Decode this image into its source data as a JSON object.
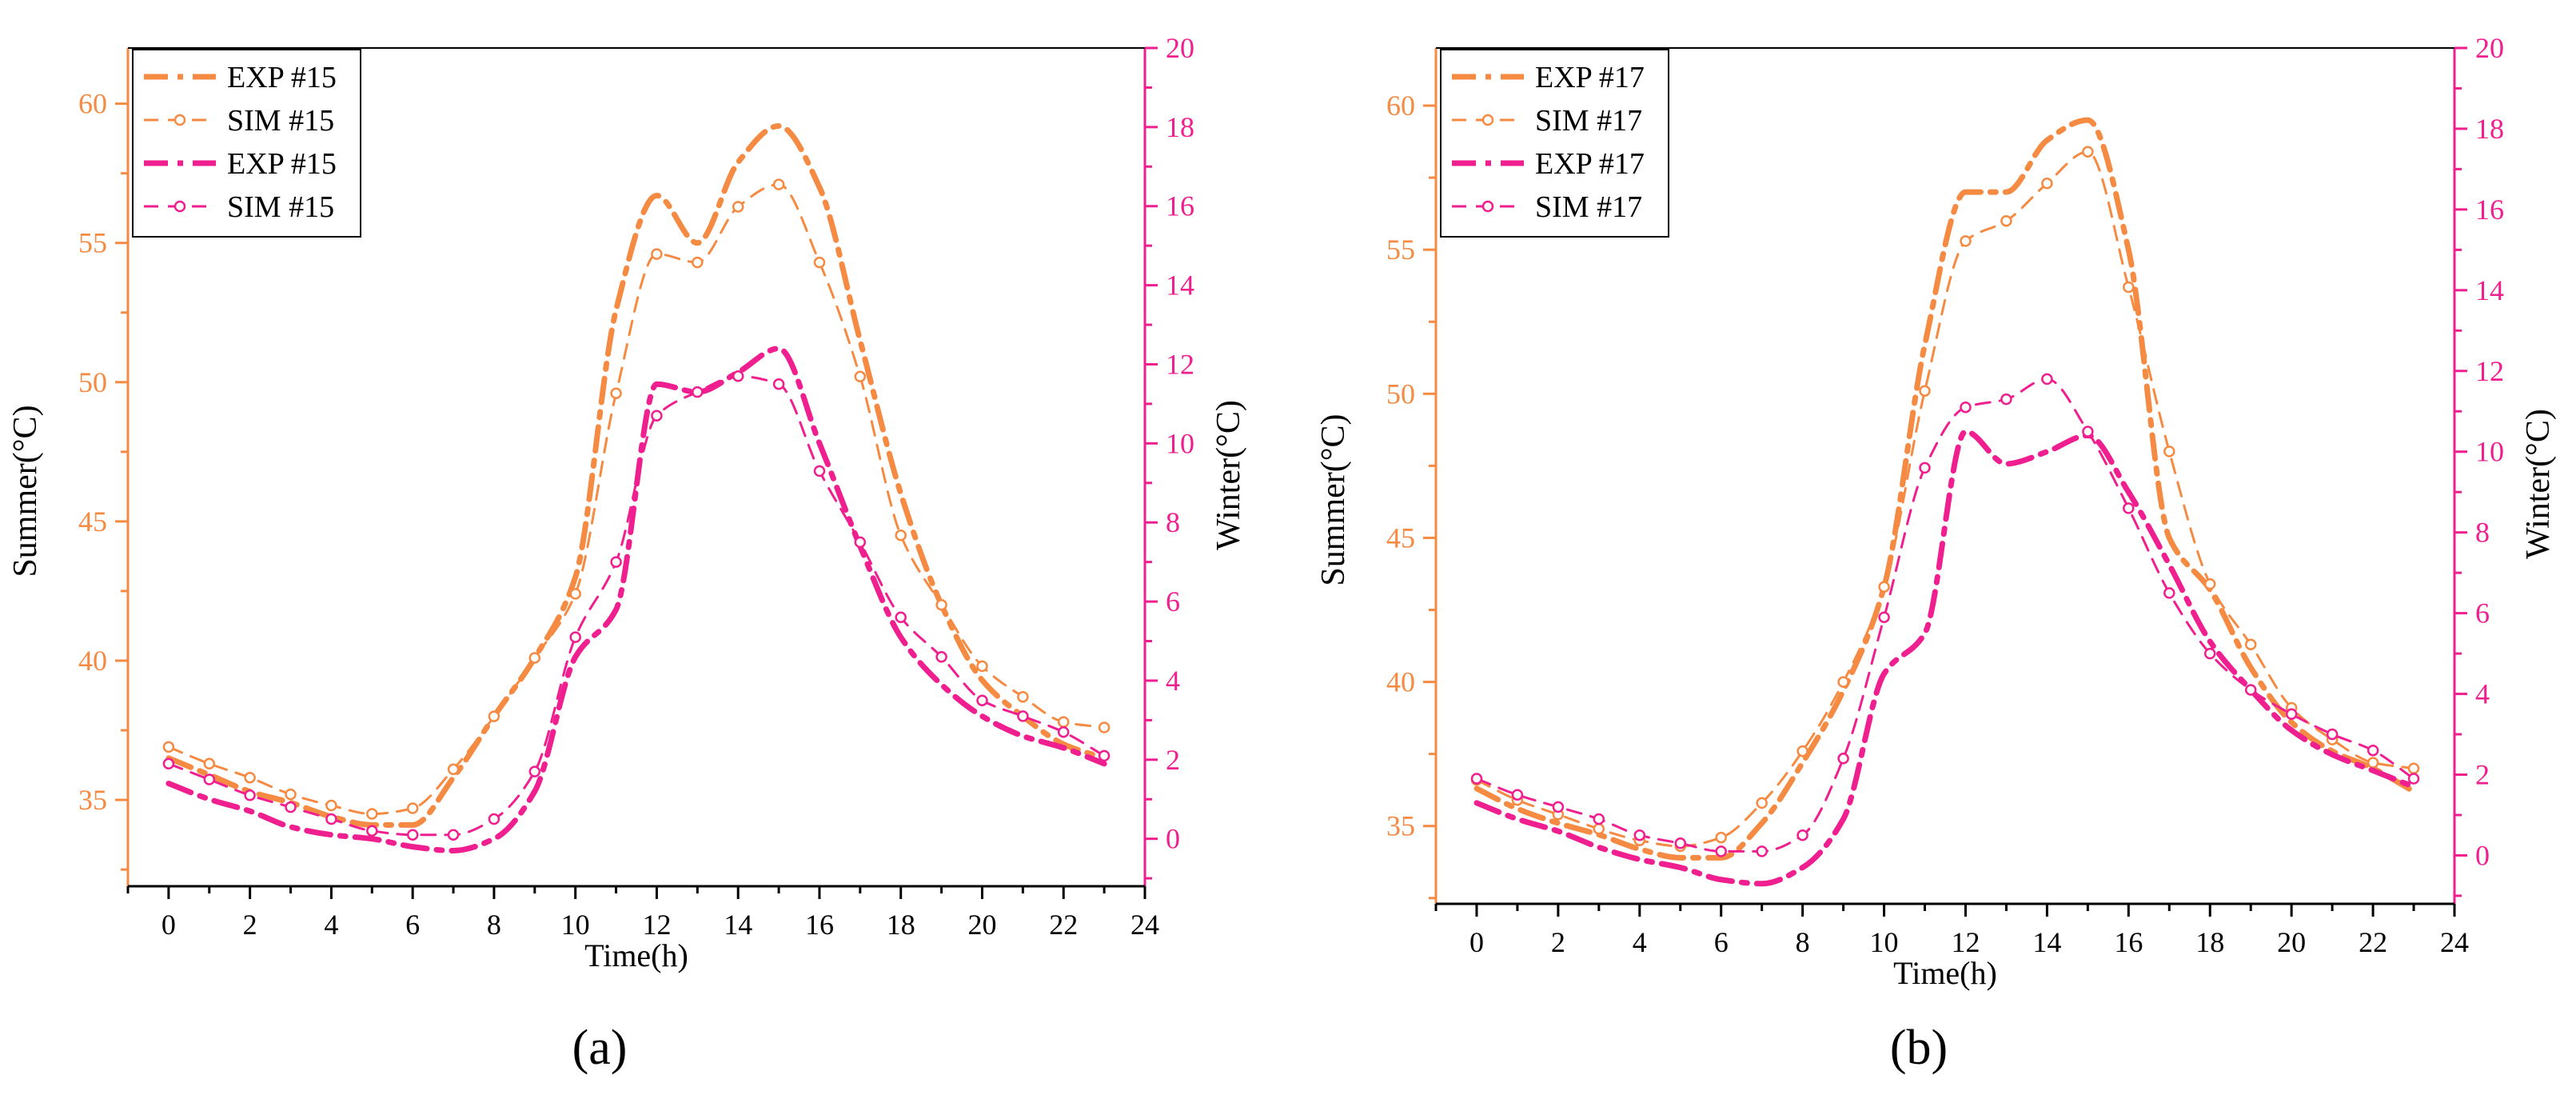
{
  "colors": {
    "summer": "#f58a42",
    "winter": "#ef1f8f",
    "axis": "#000000"
  },
  "chart_data": [
    {
      "type": "line",
      "panel_label": "(a)",
      "xlabel": "Time(h)",
      "ylabel_left": "Summer(°C)",
      "ylabel_right": "Winter(°C)",
      "xlim": [
        -1,
        24
      ],
      "ylim_left": [
        31.9,
        62
      ],
      "ylim_right": [
        -1.2,
        20
      ],
      "x_ticks": [
        0,
        2,
        4,
        6,
        8,
        10,
        12,
        14,
        16,
        18,
        20,
        22,
        24
      ],
      "y_left_ticks": [
        35,
        40,
        45,
        50,
        55,
        60
      ],
      "y_right_ticks": [
        0,
        2,
        4,
        6,
        8,
        10,
        12,
        14,
        16,
        18,
        20
      ],
      "legend": [
        "EXP #15",
        "SIM #15",
        "EXP #15",
        "SIM #15"
      ],
      "legend_position": "top-left",
      "x": [
        0,
        1,
        2,
        3,
        4,
        5,
        6,
        7,
        8,
        9,
        10,
        11,
        12,
        13,
        14,
        15,
        16,
        17,
        18,
        19,
        20,
        21,
        22,
        23
      ],
      "series": [
        {
          "name": "EXP #15",
          "axis": "left",
          "style": "dashdot",
          "markers": false,
          "values": [
            36.5,
            35.9,
            35.3,
            34.9,
            34.4,
            34.1,
            34.1,
            35.8,
            38.0,
            40.1,
            43.0,
            52.6,
            56.7,
            55.0,
            57.9,
            59.2,
            57.0,
            51.5,
            46.0,
            42.0,
            39.3,
            38.0,
            37.0,
            36.5
          ]
        },
        {
          "name": "SIM #15",
          "axis": "left",
          "style": "dash",
          "markers": true,
          "values": [
            36.9,
            36.3,
            35.8,
            35.2,
            34.8,
            34.5,
            34.7,
            36.1,
            38.0,
            40.1,
            42.4,
            49.6,
            54.6,
            54.3,
            56.3,
            57.1,
            54.3,
            50.2,
            44.5,
            42.0,
            39.8,
            38.7,
            37.8,
            37.6
          ]
        },
        {
          "name": "EXP #15",
          "axis": "right",
          "style": "dashdot",
          "markers": false,
          "values": [
            1.4,
            1.0,
            0.7,
            0.3,
            0.1,
            0.0,
            -0.2,
            -0.3,
            0.0,
            1.2,
            4.6,
            5.8,
            11.5,
            11.3,
            11.8,
            12.4,
            10.0,
            7.4,
            5.1,
            3.9,
            3.1,
            2.6,
            2.3,
            1.9
          ]
        },
        {
          "name": "SIM #15",
          "axis": "right",
          "style": "dash",
          "markers": true,
          "values": [
            1.9,
            1.5,
            1.1,
            0.8,
            0.5,
            0.2,
            0.1,
            0.1,
            0.5,
            1.7,
            5.1,
            7.0,
            10.7,
            11.3,
            11.7,
            11.5,
            9.3,
            7.5,
            5.6,
            4.6,
            3.5,
            3.1,
            2.7,
            2.1
          ]
        }
      ]
    },
    {
      "type": "line",
      "panel_label": "(b)",
      "xlabel": "Time(h)",
      "ylabel_left": "Summer(°C)",
      "ylabel_right": "Winter(°C)",
      "xlim": [
        -1,
        24
      ],
      "ylim_left": [
        32.3,
        62
      ],
      "ylim_right": [
        -1.2,
        20
      ],
      "x_ticks": [
        0,
        2,
        4,
        6,
        8,
        10,
        12,
        14,
        16,
        18,
        20,
        22,
        24
      ],
      "y_left_ticks": [
        35,
        40,
        45,
        50,
        55,
        60
      ],
      "y_right_ticks": [
        0,
        2,
        4,
        6,
        8,
        10,
        12,
        14,
        16,
        18,
        20
      ],
      "legend": [
        "EXP #17",
        "SIM #17",
        "EXP #17",
        "SIM #17"
      ],
      "legend_position": "top-left",
      "x": [
        0,
        1,
        2,
        3,
        4,
        5,
        6,
        7,
        8,
        9,
        10,
        11,
        12,
        13,
        14,
        15,
        16,
        17,
        18,
        19,
        20,
        21,
        22,
        23
      ],
      "series": [
        {
          "name": "EXP #17",
          "axis": "left",
          "style": "dashdot",
          "markers": false,
          "values": [
            36.3,
            35.6,
            35.1,
            34.7,
            34.2,
            33.9,
            33.9,
            35.1,
            37.2,
            39.7,
            43.3,
            51.7,
            57.0,
            57.0,
            58.8,
            59.5,
            55.0,
            45.0,
            43.2,
            40.5,
            38.6,
            37.6,
            37.0,
            36.2
          ]
        },
        {
          "name": "SIM #17",
          "axis": "left",
          "style": "dash",
          "markers": true,
          "values": [
            36.6,
            35.9,
            35.4,
            34.9,
            34.5,
            34.3,
            34.6,
            35.8,
            37.6,
            40.0,
            43.3,
            50.1,
            55.3,
            56.0,
            57.3,
            58.4,
            53.7,
            48.0,
            43.4,
            41.3,
            39.1,
            38.0,
            37.2,
            37.0
          ]
        },
        {
          "name": "EXP #17",
          "axis": "right",
          "style": "dashdot",
          "markers": false,
          "values": [
            1.3,
            0.9,
            0.6,
            0.2,
            -0.1,
            -0.3,
            -0.6,
            -0.7,
            -0.3,
            0.9,
            4.5,
            5.5,
            10.5,
            9.7,
            10.0,
            10.4,
            9.0,
            7.2,
            5.3,
            4.1,
            3.1,
            2.5,
            2.1,
            1.7
          ]
        },
        {
          "name": "SIM #17",
          "axis": "right",
          "style": "dash",
          "markers": true,
          "values": [
            1.9,
            1.5,
            1.2,
            0.9,
            0.5,
            0.3,
            0.1,
            0.1,
            0.5,
            2.4,
            5.9,
            9.6,
            11.1,
            11.3,
            11.8,
            10.5,
            8.6,
            6.5,
            5.0,
            4.1,
            3.5,
            3.0,
            2.6,
            1.9
          ]
        }
      ]
    }
  ]
}
